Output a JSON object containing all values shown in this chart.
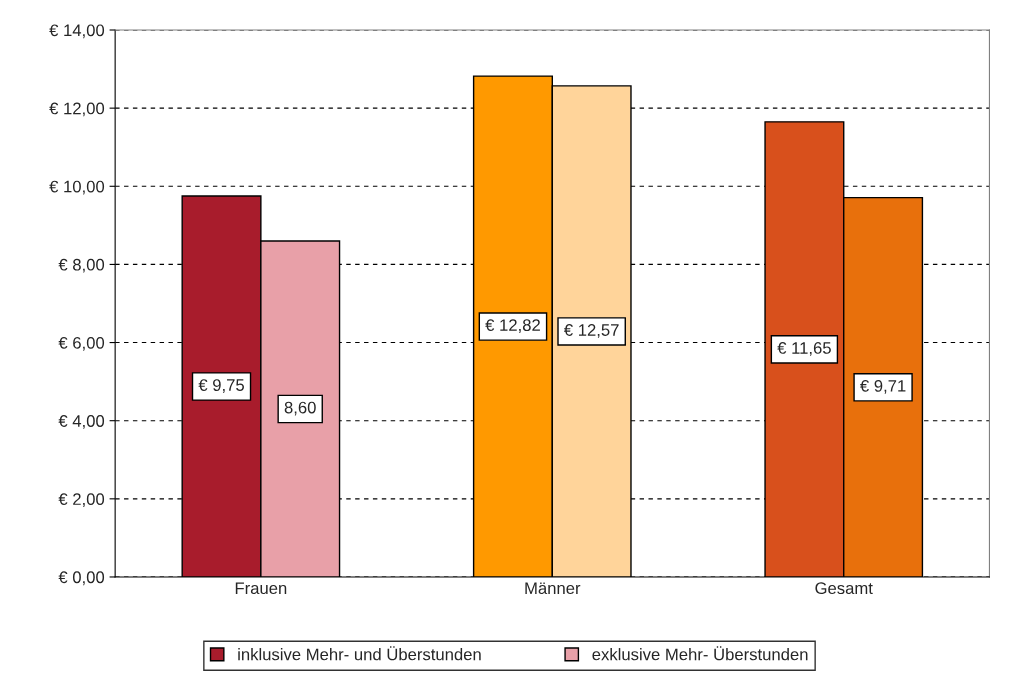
{
  "chart_data": {
    "type": "bar",
    "categories": [
      "Frauen",
      "Männer",
      "Gesamt"
    ],
    "series": [
      {
        "name": "inklusive Mehr- und Überstunden",
        "color": "#a81c2c",
        "colors": [
          "#a81c2c",
          "#ff9900",
          "#d8501c"
        ],
        "values": [
          9.75,
          12.82,
          11.65
        ],
        "value_labels": [
          "€ 9,75",
          "€ 12,82",
          "€ 11,65"
        ]
      },
      {
        "name": "exklusive Mehr- Überstunden",
        "color": "#e8a0a8",
        "colors": [
          "#e8a0a8",
          "#ffd49a",
          "#e8700c"
        ],
        "values": [
          8.6,
          12.57,
          9.71
        ],
        "value_labels": [
          "8,60",
          "€ 12,57",
          "€ 9,71"
        ]
      }
    ],
    "ylim": [
      0,
      14
    ],
    "yticks": [
      {
        "value": 0,
        "label": "€ 0,00"
      },
      {
        "value": 2,
        "label": "€ 2,00"
      },
      {
        "value": 4,
        "label": "€ 4,00"
      },
      {
        "value": 6,
        "label": "€ 6,00"
      },
      {
        "value": 8,
        "label": "€ 8,00"
      },
      {
        "value": 10,
        "label": "€ 10,00"
      },
      {
        "value": 12,
        "label": "€ 12,00"
      },
      {
        "value": 14,
        "label": "€ 14,00"
      }
    ],
    "grid": "y",
    "legend": "bottom"
  }
}
